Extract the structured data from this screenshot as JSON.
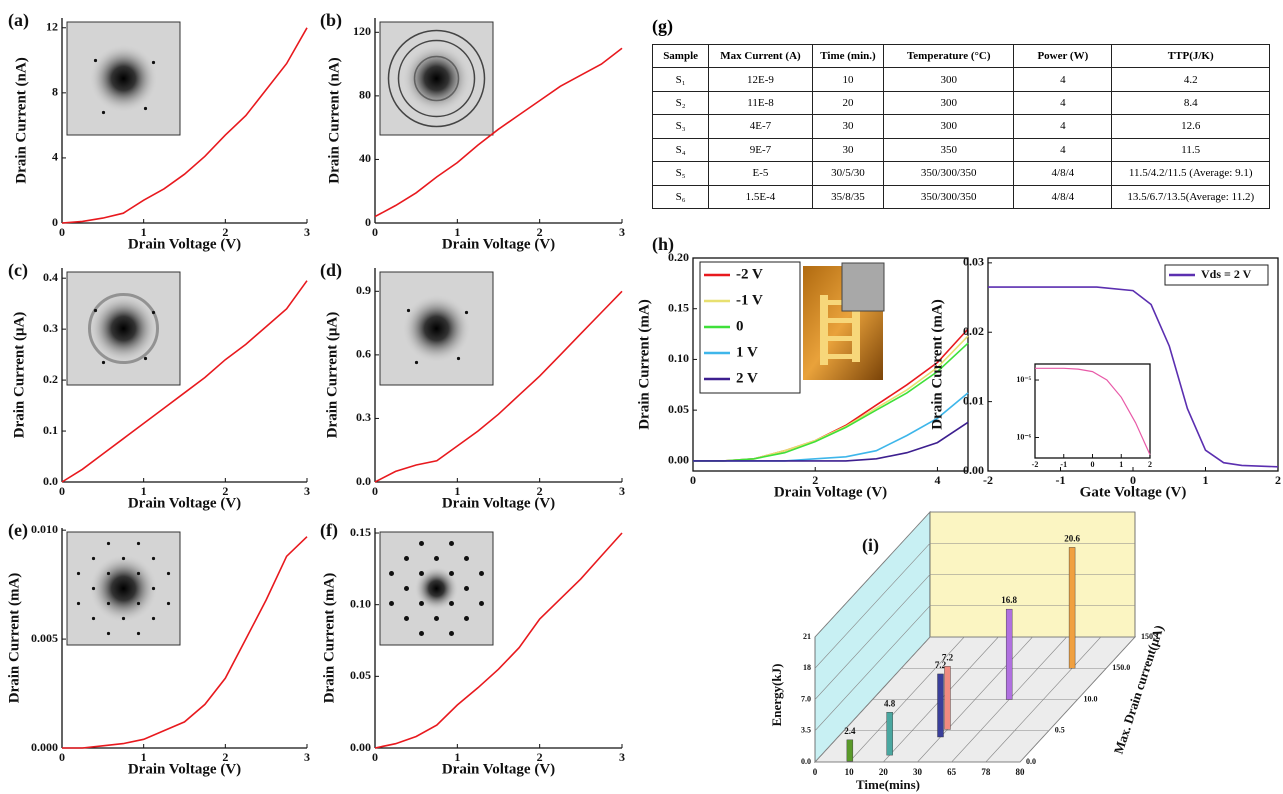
{
  "chart_data": [
    {
      "type": "line",
      "label": "(a)",
      "xlabel": "Drain Voltage (V)",
      "ylabel": "Drain Current (nA)",
      "x": [
        0,
        0.25,
        0.5,
        0.75,
        1,
        1.25,
        1.5,
        1.75,
        2,
        2.25,
        2.5,
        2.75,
        3
      ],
      "series": [
        {
          "color": "#e8191e",
          "values": [
            0,
            0.1,
            0.3,
            0.6,
            1.4,
            2.1,
            3.0,
            4.1,
            5.4,
            6.6,
            8.2,
            9.8,
            12
          ]
        }
      ],
      "xlim": [
        0,
        3
      ],
      "xticks": [
        0,
        1,
        2,
        3
      ],
      "ylim": [
        0,
        12.6
      ],
      "yticks": [
        0,
        4,
        8,
        12
      ]
    },
    {
      "type": "line",
      "label": "(b)",
      "xlabel": "Drain Voltage (V)",
      "ylabel": "Drain Current (nA)",
      "x": [
        0,
        0.25,
        0.5,
        0.75,
        1,
        1.25,
        1.5,
        1.75,
        2,
        2.25,
        2.5,
        2.75,
        3
      ],
      "series": [
        {
          "color": "#e8191e",
          "values": [
            4,
            11,
            19,
            29,
            38,
            49,
            59,
            68,
            77,
            86,
            93,
            100,
            110
          ]
        }
      ],
      "xlim": [
        0,
        3
      ],
      "xticks": [
        0,
        1,
        2,
        3
      ],
      "ylim": [
        0,
        129
      ],
      "yticks": [
        0,
        40,
        80,
        120
      ]
    },
    {
      "type": "line",
      "label": "(c)",
      "xlabel": "Drain Voltage (V)",
      "ylabel": "Drain Current (μA)",
      "x": [
        0,
        0.25,
        0.5,
        0.75,
        1,
        1.25,
        1.5,
        1.75,
        2,
        2.25,
        2.5,
        2.75,
        3
      ],
      "series": [
        {
          "color": "#e8191e",
          "values": [
            0,
            0.025,
            0.055,
            0.085,
            0.115,
            0.145,
            0.175,
            0.205,
            0.24,
            0.27,
            0.305,
            0.34,
            0.395
          ]
        }
      ],
      "xlim": [
        0,
        3
      ],
      "xticks": [
        0,
        1,
        2,
        3
      ],
      "ylim": [
        0,
        0.42
      ],
      "yticks": [
        {
          "value": 0,
          "label": "0.0"
        },
        0.1,
        0.2,
        0.3,
        0.4
      ]
    },
    {
      "type": "line",
      "label": "(d)",
      "xlabel": "Drain Voltage (V)",
      "ylabel": "Drain Current (μA)",
      "x": [
        0,
        0.25,
        0.5,
        0.75,
        1,
        1.25,
        1.5,
        1.75,
        2,
        2.25,
        2.5,
        2.75,
        3
      ],
      "series": [
        {
          "color": "#e8191e",
          "values": [
            0,
            0.05,
            0.08,
            0.1,
            0.17,
            0.24,
            0.32,
            0.41,
            0.5,
            0.6,
            0.7,
            0.8,
            0.9
          ]
        }
      ],
      "xlim": [
        0,
        3
      ],
      "xticks": [
        0,
        1,
        2,
        3
      ],
      "ylim": [
        0,
        1.01
      ],
      "yticks": [
        {
          "value": 0,
          "label": "0.0"
        },
        0.3,
        0.6,
        0.9
      ]
    },
    {
      "type": "line",
      "label": "(e)",
      "xlabel": "Drain Voltage (V)",
      "ylabel": "Drain Current (mA)",
      "x": [
        0,
        0.25,
        0.5,
        0.75,
        1,
        1.25,
        1.5,
        1.75,
        2,
        2.25,
        2.5,
        2.75,
        3
      ],
      "series": [
        {
          "color": "#e8191e",
          "values": [
            0,
            0,
            0.0001,
            0.0002,
            0.0004,
            0.0008,
            0.0012,
            0.002,
            0.0032,
            0.005,
            0.0068,
            0.0088,
            0.0097
          ]
        }
      ],
      "xlim": [
        0,
        3
      ],
      "xticks": [
        0,
        1,
        2,
        3
      ],
      "ylim": [
        0,
        0.0101
      ],
      "yticks": [
        {
          "value": 0,
          "label": "0.000"
        },
        0.005,
        {
          "value": 0.01,
          "label": "0.010"
        }
      ]
    },
    {
      "type": "line",
      "label": "(f)",
      "xlabel": "Drain Voltage (V)",
      "ylabel": "Drain Current (mA)",
      "x": [
        0,
        0.25,
        0.5,
        0.75,
        1,
        1.25,
        1.5,
        1.75,
        2,
        2.25,
        2.5,
        2.75,
        3
      ],
      "series": [
        {
          "color": "#e8191e",
          "values": [
            0,
            0.003,
            0.008,
            0.016,
            0.03,
            0.042,
            0.055,
            0.07,
            0.09,
            0.104,
            0.118,
            0.134,
            0.15
          ]
        }
      ],
      "xlim": [
        0,
        3
      ],
      "xticks": [
        0,
        1,
        2,
        3
      ],
      "ylim": [
        0,
        0.1535
      ],
      "yticks": [
        {
          "value": 0,
          "label": "0.00"
        },
        0.05,
        {
          "value": 0.1,
          "label": "0.10"
        },
        0.15
      ]
    },
    {
      "type": "line",
      "label": "(h)",
      "xlabel": "Drain Voltage (V)",
      "ylabel": "Drain Current (mA)",
      "legend": "upper left",
      "x": [
        0,
        0.5,
        1,
        1.5,
        2,
        2.5,
        3,
        3.5,
        4,
        4.5
      ],
      "series": [
        {
          "name": "-2 V",
          "color": "#e8191e",
          "values": [
            0,
            0,
            0.002,
            0.01,
            0.02,
            0.035,
            0.055,
            0.075,
            0.097,
            0.13
          ]
        },
        {
          "name": "-1 V",
          "color": "#e8e070",
          "values": [
            0,
            0,
            0.002,
            0.01,
            0.02,
            0.034,
            0.052,
            0.07,
            0.092,
            0.123
          ]
        },
        {
          "name": "0",
          "color": "#3fe03a",
          "values": [
            0,
            0,
            0.002,
            0.008,
            0.019,
            0.033,
            0.05,
            0.067,
            0.088,
            0.116
          ]
        },
        {
          "name": "1 V",
          "color": "#3eb6ea",
          "values": [
            0,
            0,
            0,
            0,
            0.002,
            0.004,
            0.01,
            0.025,
            0.042,
            0.067
          ]
        },
        {
          "name": "2 V",
          "color": "#3d1f8f",
          "values": [
            0,
            0,
            0,
            0,
            0,
            0,
            0.002,
            0.008,
            0.018,
            0.038
          ]
        }
      ],
      "xlim": [
        0,
        4.5
      ],
      "xticks": [
        0,
        2,
        4
      ],
      "ylim": [
        -0.01,
        0.2
      ],
      "yticks": [
        {
          "value": 0,
          "label": "0.00"
        },
        0.05,
        {
          "value": 0.1,
          "label": "0.10"
        },
        0.15,
        {
          "value": 0.2,
          "label": "0.20"
        }
      ]
    },
    {
      "type": "line",
      "xlabel": "Gate Voltage (V)",
      "ylabel": "Drain Current (mA)",
      "legend": "upper right",
      "x": [
        -2,
        -1.5,
        -1,
        -0.5,
        0,
        0.25,
        0.5,
        0.75,
        1,
        1.25,
        1.5,
        2
      ],
      "series": [
        {
          "name": "Vds = 2 V",
          "color": "#5b2fb0",
          "values": [
            0.0265,
            0.0265,
            0.0265,
            0.0265,
            0.026,
            0.024,
            0.018,
            0.009,
            0.003,
            0.0012,
            0.0008,
            0.0006
          ]
        }
      ],
      "xlim": [
        -2,
        2
      ],
      "xticks": [
        -2,
        -1,
        0,
        1,
        2
      ],
      "ylim": [
        0,
        0.0307
      ],
      "yticks": [
        {
          "value": 0,
          "label": "0.00"
        },
        0.01,
        0.02,
        0.03
      ]
    },
    {
      "type": "line",
      "ylog": true,
      "x": [
        -2,
        -1.5,
        -1,
        -0.5,
        0,
        0.5,
        1,
        1.5,
        2
      ],
      "series": [
        {
          "color": "#e85aa8",
          "values": [
            1.6e-05,
            1.6e-05,
            1.6e-05,
            1.55e-05,
            1.4e-05,
            1e-05,
            5e-06,
            1.8e-06,
            5e-07
          ]
        }
      ],
      "xlim": [
        -2,
        2
      ],
      "xticks": [
        -2,
        -1,
        0,
        1,
        2
      ],
      "ylim": [
        4.4e-07,
        1.9e-05
      ],
      "yticks": [
        {
          "value": 1e-05,
          "label": "10⁻⁵"
        },
        {
          "value": 1e-06,
          "label": "10⁻⁶"
        }
      ]
    },
    {
      "type": "bar3d",
      "label": "(i)",
      "xlabel": "Time(mins)",
      "ylabel": "Energy(kJ)",
      "zlabel": "Max. Drain current(μA)",
      "x": [
        10,
        20,
        30,
        30,
        65,
        78
      ],
      "z": [
        0.012,
        0.11,
        0.4,
        0.9,
        10,
        150
      ],
      "values": [
        2.4,
        4.8,
        7.2,
        7.2,
        16.8,
        20.6
      ],
      "colors": [
        "#5a9a2a",
        "#4aa7a0",
        "#3a3f9a",
        "#f08a80",
        "#b070e0",
        "#f0a040"
      ],
      "xticks": [
        0,
        10,
        20,
        30,
        65,
        78,
        80
      ],
      "yticks": [
        {
          "value": 0,
          "label": "0.0"
        },
        3.5,
        {
          "value": 7,
          "label": "7.0"
        },
        18,
        21
      ],
      "zticks": [
        {
          "value": 0,
          "label": "0.0"
        },
        0.5,
        {
          "value": 10,
          "label": "10.0"
        },
        {
          "value": 150,
          "label": "150.0"
        },
        150.1
      ]
    }
  ],
  "table": {
    "label": "(g)",
    "header": [
      "Sample",
      "Max Current (A)",
      "Time (min.)",
      "Temperature (°C)",
      "Power (W)",
      "TTP(J/K)"
    ],
    "rows": [
      [
        "S₁",
        "12E-9",
        "10",
        "300",
        "4",
        "4.2"
      ],
      [
        "S₂",
        "11E-8",
        "20",
        "300",
        "4",
        "8.4"
      ],
      [
        "S₃",
        "4E-7",
        "30",
        "300",
        "4",
        "12.6"
      ],
      [
        "S₄",
        "9E-7",
        "30",
        "350",
        "4",
        "11.5"
      ],
      [
        "S₅",
        "E-5",
        "30/5/30",
        "350/300/350",
        "4/8/4",
        "11.5/4.2/11.5 (Average: 9.1)"
      ],
      [
        "S₆",
        "1.5E-4",
        "35/8/35",
        "350/300/350",
        "4/8/4",
        "13.5/6.7/13.5(Average: 11.2)"
      ]
    ]
  }
}
